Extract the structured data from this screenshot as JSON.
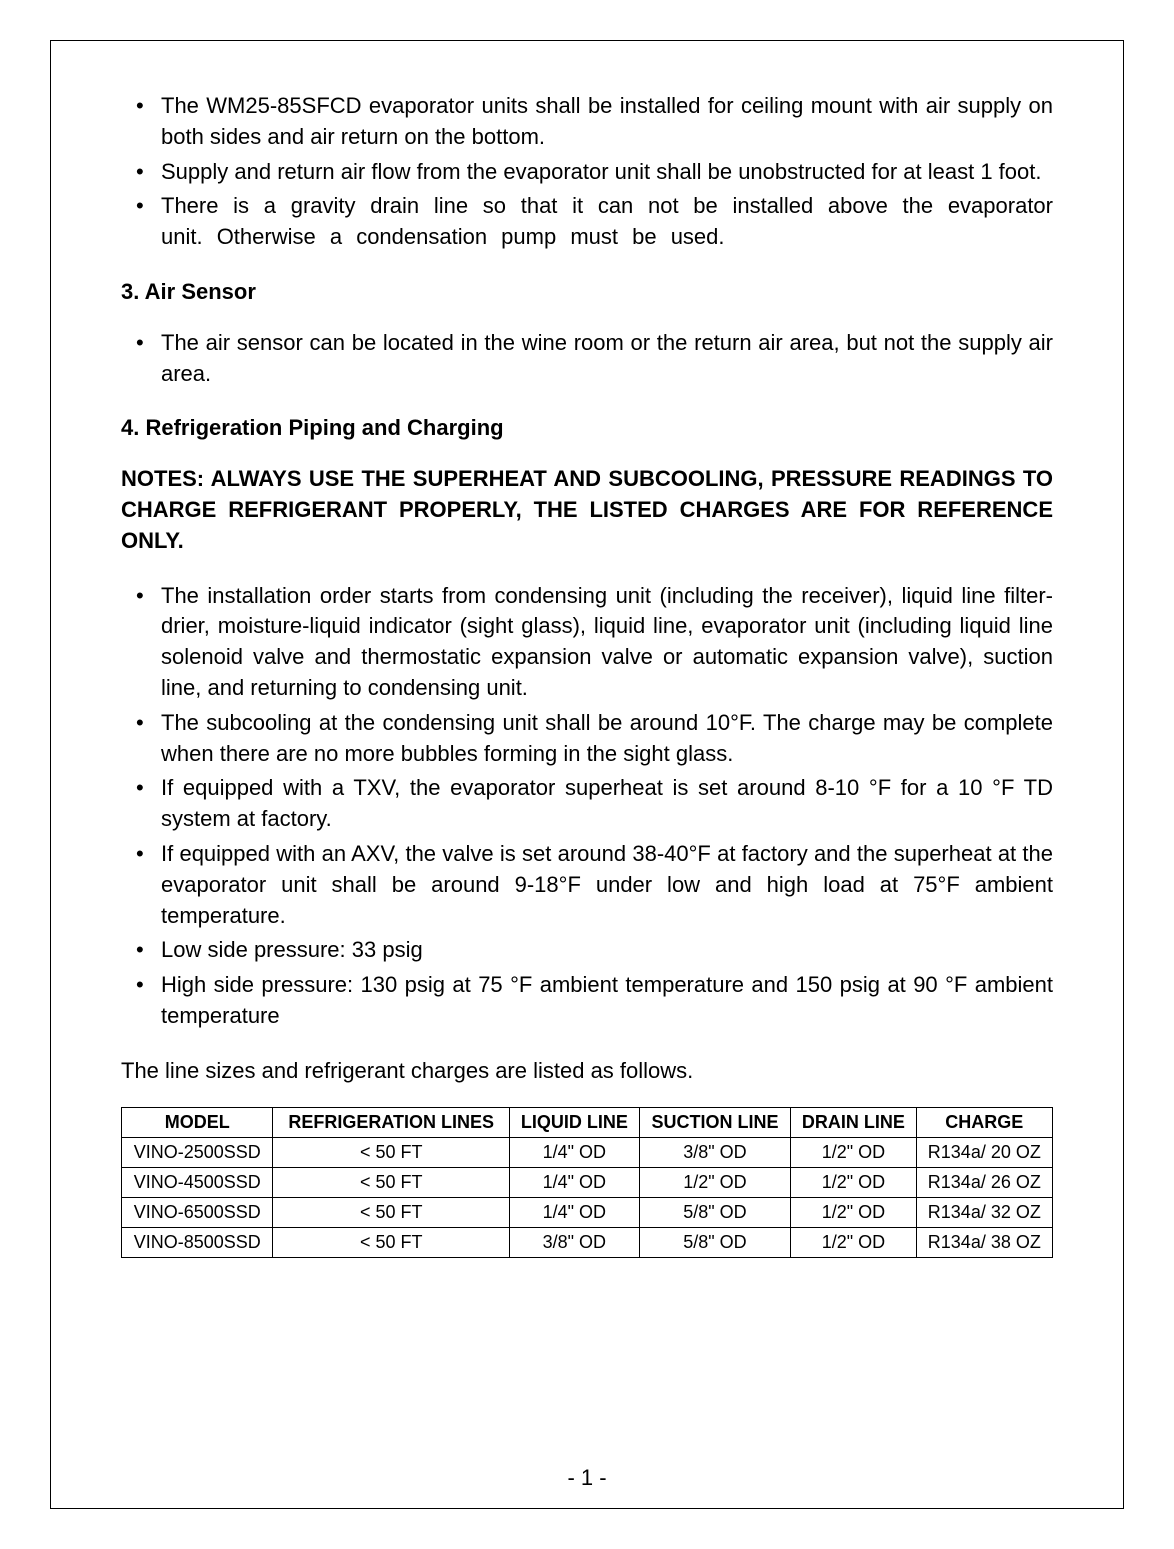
{
  "bullets_top": [
    "The WM25-85SFCD evaporator units shall be installed for ceiling mount with air supply on both sides and air return on the bottom.",
    "Supply and return air flow from the evaporator unit shall be unobstructed for at least 1 foot.",
    "There is a gravity drain line so that it can not be installed above the evaporator unit. Otherwise a condensation pump must be used."
  ],
  "section3_heading": "3.  Air Sensor",
  "section3_bullets": [
    "The air sensor can be located in the wine room or the return air area, but not the supply air area."
  ],
  "section4_heading": "4.  Refrigeration Piping and Charging",
  "notes_text": "NOTES: ALWAYS USE THE SUPERHEAT AND SUBCOOLING, PRESSURE READINGS TO CHARGE REFRIGERANT PROPERLY, THE LISTED CHARGES ARE FOR REFERENCE ONLY.",
  "section4_bullets": [
    "The installation order starts from condensing unit (including the receiver), liquid line filter-drier, moisture-liquid indicator (sight glass), liquid line, evaporator unit (including liquid line solenoid valve and thermostatic expansion valve or automatic expansion valve), suction line, and returning to condensing unit.",
    "The subcooling at the condensing unit shall be around 10°F. The charge may be complete when there are no more bubbles forming in the sight glass.",
    "If equipped with a TXV, the evaporator superheat is set around 8-10 °F for a 10 °F TD system at factory.",
    "If equipped with an AXV, the valve is set around 38-40°F at factory and the superheat at the evaporator unit shall be around 9-18°F under low and high load at 75°F ambient temperature.",
    "Low side pressure: 33 psig",
    "High side pressure: 130 psig at 75 °F ambient temperature and 150 psig at 90 °F ambient temperature"
  ],
  "line_sizes_intro": "The line sizes and refrigerant charges are listed as follows.",
  "table": {
    "headers": [
      "MODEL",
      "REFRIGERATION LINES",
      "LIQUID LINE",
      "SUCTION LINE",
      "DRAIN LINE",
      "CHARGE"
    ],
    "rows": [
      [
        "VINO-2500SSD",
        "< 50 FT",
        "1/4\" OD",
        "3/8\" OD",
        "1/2\" OD",
        "R134a/ 20 OZ"
      ],
      [
        "VINO-4500SSD",
        "< 50 FT",
        "1/4\" OD",
        "1/2\" OD",
        "1/2\" OD",
        "R134a/ 26 OZ"
      ],
      [
        "VINO-6500SSD",
        "< 50 FT",
        "1/4\" OD",
        "5/8\" OD",
        "1/2\" OD",
        "R134a/ 32 OZ"
      ],
      [
        "VINO-8500SSD",
        "< 50 FT",
        "3/8\" OD",
        "5/8\" OD",
        "1/2\" OD",
        "R134a/ 38 OZ"
      ]
    ]
  },
  "page_number": "- 1 -",
  "colors": {
    "background": "#ffffff",
    "text": "#000000",
    "border": "#000000"
  },
  "typography": {
    "body_font_family": "Arial, sans-serif",
    "body_font_size": 22,
    "table_font_size": 18,
    "line_height": 1.4
  }
}
